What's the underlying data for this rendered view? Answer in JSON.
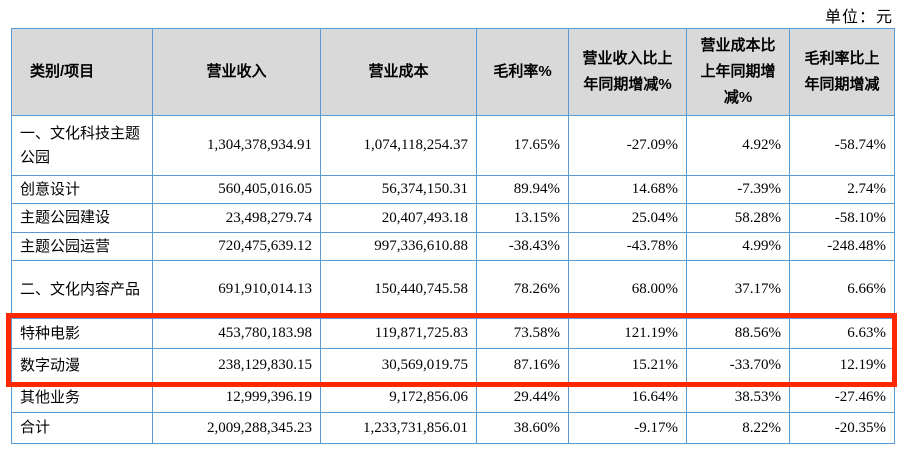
{
  "unit_label": "单位：元",
  "colors": {
    "table_border": "#5b9bd5",
    "header_bg": "#d9d9d9",
    "highlight_red": "#ff2800"
  },
  "table": {
    "headers": [
      "类别/项目",
      "营业收入",
      "营业成本",
      "毛利率%",
      "营业收入比上年同期增减%",
      "营业成本比上年同期增减%",
      "毛利率比上年同期增减"
    ],
    "rows": [
      {
        "label": "一、文化科技主题公园",
        "revenue": "1,304,378,934.91",
        "cost": "1,074,118,254.37",
        "margin": "17.65%",
        "revenue_change": "-27.09%",
        "cost_change": "4.92%",
        "margin_change": "-58.74%",
        "highlighted": false
      },
      {
        "label": "创意设计",
        "revenue": "560,405,016.05",
        "cost": "56,374,150.31",
        "margin": "89.94%",
        "revenue_change": "14.68%",
        "cost_change": "-7.39%",
        "margin_change": "2.74%",
        "highlighted": false
      },
      {
        "label": "主题公园建设",
        "revenue": "23,498,279.74",
        "cost": "20,407,493.18",
        "margin": "13.15%",
        "revenue_change": "25.04%",
        "cost_change": "58.28%",
        "margin_change": "-58.10%",
        "highlighted": false
      },
      {
        "label": "主题公园运营",
        "revenue": "720,475,639.12",
        "cost": "997,336,610.88",
        "margin": "-38.43%",
        "revenue_change": "-43.78%",
        "cost_change": "4.99%",
        "margin_change": "-248.48%",
        "highlighted": false
      },
      {
        "label": "二、文化内容产品",
        "revenue": "691,910,014.13",
        "cost": "150,440,745.58",
        "margin": "78.26%",
        "revenue_change": "68.00%",
        "cost_change": "37.17%",
        "margin_change": "6.66%",
        "highlighted": false
      },
      {
        "label": "特种电影",
        "revenue": "453,780,183.98",
        "cost": "119,871,725.83",
        "margin": "73.58%",
        "revenue_change": "121.19%",
        "cost_change": "88.56%",
        "margin_change": "6.63%",
        "highlighted": true
      },
      {
        "label": "数字动漫",
        "revenue": "238,129,830.15",
        "cost": "30,569,019.75",
        "margin": "87.16%",
        "revenue_change": "15.21%",
        "cost_change": "-33.70%",
        "margin_change": "12.19%",
        "highlighted": true
      },
      {
        "label": "其他业务",
        "revenue": "12,999,396.19",
        "cost": "9,172,856.06",
        "margin": "29.44%",
        "revenue_change": "16.64%",
        "cost_change": "38.53%",
        "margin_change": "-27.46%",
        "highlighted": false
      },
      {
        "label": "合计",
        "revenue": "2,009,288,345.23",
        "cost": "1,233,731,856.01",
        "margin": "38.60%",
        "revenue_change": "-9.17%",
        "cost_change": "8.22%",
        "margin_change": "-20.35%",
        "highlighted": false
      }
    ]
  }
}
